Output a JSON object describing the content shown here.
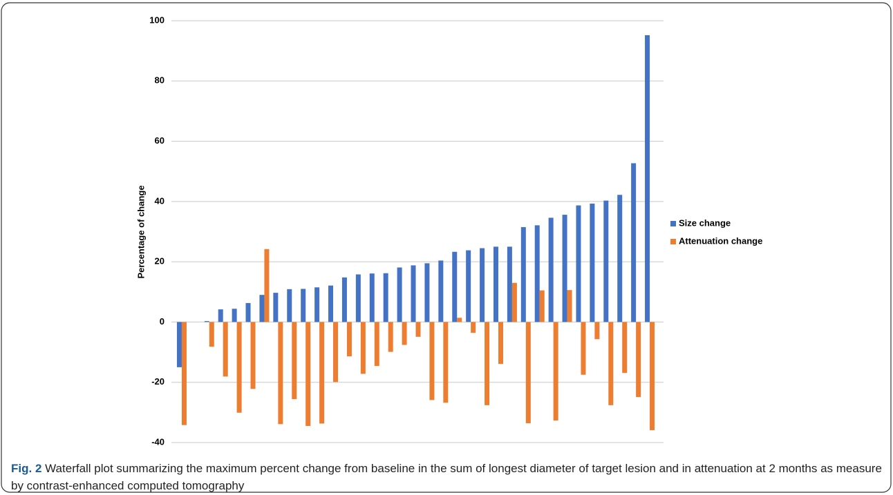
{
  "chart_data": {
    "type": "bar",
    "y_label": "Percentage of change",
    "categories": [
      null,
      null,
      null,
      null,
      null,
      null,
      null,
      null,
      null,
      null,
      null,
      null,
      null,
      null,
      null,
      null,
      null,
      null,
      null,
      null,
      null,
      null,
      null,
      null,
      null,
      null,
      null,
      null,
      null,
      null,
      null,
      null,
      null,
      null,
      null
    ],
    "series": [
      {
        "name": "Size change",
        "color": "#4472c4",
        "values": [
          -15,
          0,
          0.3,
          4.2,
          4.4,
          6.3,
          9,
          9.7,
          10.9,
          11,
          11.5,
          12.1,
          14.8,
          15.8,
          16.1,
          16.2,
          18.1,
          18.8,
          19.5,
          20.4,
          23.3,
          23.8,
          24.5,
          25,
          25,
          31.5,
          32.1,
          34.6,
          35.6,
          38.7,
          39.3,
          40.3,
          42.2,
          52.7,
          95.2
        ]
      },
      {
        "name": "Attenuation change",
        "color": "#ed7d31",
        "values": [
          -34.2,
          0,
          -8.2,
          -18.1,
          -30.1,
          -22.2,
          24.2,
          -33.9,
          -25.6,
          -34.5,
          -33.7,
          -19.9,
          -11.4,
          -17.2,
          -14.6,
          -9.9,
          -7.6,
          -4.9,
          -25.9,
          -26.8,
          1.4,
          -3.6,
          -27.6,
          -13.9,
          13,
          -33.6,
          10.5,
          -32.7,
          10.6,
          -17.5,
          -5.7,
          -27.6,
          -16.9,
          -24.9,
          -35.9
        ]
      }
    ],
    "ylim": [
      -40,
      100
    ],
    "yticks": [
      -40,
      -20,
      0,
      20,
      40,
      60,
      80,
      100
    ],
    "grid": true,
    "legend": "right",
    "caption_label": "Fig. 2",
    "caption": "Waterfall plot summarizing the maximum percent change from baseline in the sum of longest diameter of target lesion and in attenuation at 2 months as measure by contrast-enhanced computed tomography"
  }
}
